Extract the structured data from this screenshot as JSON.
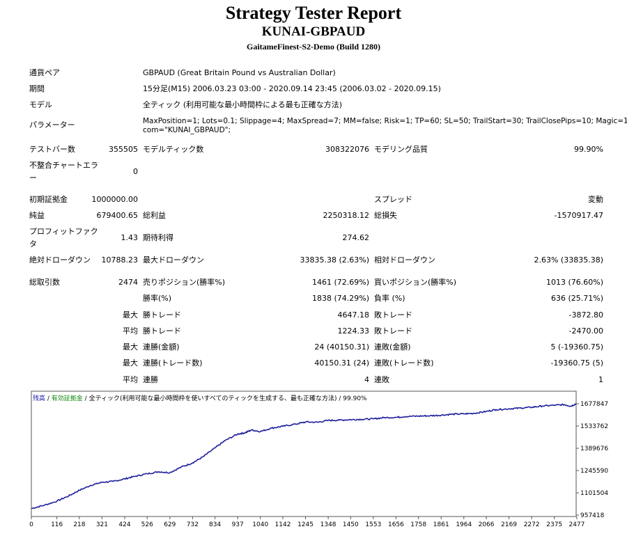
{
  "header": {
    "title": "Strategy Tester Report",
    "subtitle": "KUNAI-GBPAUD",
    "server": "GaitameFinest-S2-Demo (Build 1280)"
  },
  "info": {
    "pair_label": "通貨ペア",
    "pair_value": "GBPAUD (Great Britain Pound vs Australian Dollar)",
    "period_label": "期間",
    "period_value": "15分足(M15) 2006.03.23 03:00 - 2020.09.14 23:45 (2006.03.02 - 2020.09.15)",
    "model_label": "モデル",
    "model_value": "全ティック (利用可能な最小時間枠による最も正確な方法)",
    "params_label": "パラメーター",
    "params_line1": "MaxPosition=1; Lots=0.1; Slippage=4; MaxSpread=7; MM=false; Risk=1; TP=60; SL=50; TrailStart=30; TrailClosePips=10; Magic=1006;",
    "params_line2": "com=\"KUNAI_GBPAUD\";"
  },
  "stats": {
    "bars_label": "テストバー数",
    "bars_value": "355505",
    "ticks_label": "モデルティック数",
    "ticks_value": "308322076",
    "quality_label": "モデリング品質",
    "quality_value": "99.90%",
    "mismatch_label": "不整合チャートエラー",
    "mismatch_value": "0",
    "deposit_label": "初期証拠金",
    "deposit_value": "1000000.00",
    "spread_label": "スプレッド",
    "spread_value": "変動",
    "net_label": "純益",
    "net_value": "679400.65",
    "gross_profit_label": "総利益",
    "gross_profit_value": "2250318.12",
    "gross_loss_label": "総損失",
    "gross_loss_value": "-1570917.47",
    "pf_label": "プロフィットファクタ",
    "pf_value": "1.43",
    "expected_label": "期待利得",
    "expected_value": "274.62",
    "abs_dd_label": "絶対ドローダウン",
    "abs_dd_value": "10788.23",
    "max_dd_label": "最大ドローダウン",
    "max_dd_value": "33835.38 (2.63%)",
    "rel_dd_label": "相対ドローダウン",
    "rel_dd_value": "2.63% (33835.38)",
    "trades_label": "総取引数",
    "trades_value": "2474",
    "short_label": "売りポジション(勝率%)",
    "short_value": "1461 (72.69%)",
    "long_label": "買いポジション(勝率%)",
    "long_value": "1013 (76.60%)",
    "winrate_label": "勝率(%)",
    "winrate_value": "1838 (74.29%)",
    "lossrate_label": "負率 (%)",
    "lossrate_value": "636 (25.71%)",
    "max_word": "最大",
    "avg_word": "平均",
    "win_trade_label": "勝トレード",
    "lose_trade_label": "敗トレード",
    "largest_win_value": "4647.18",
    "largest_loss_value": "-3872.80",
    "avg_win_value": "1224.33",
    "avg_loss_value": "-2470.00",
    "consec_win_amount_label": "連勝(金額)",
    "consec_win_amount_value": "24 (40150.31)",
    "consec_loss_amount_label": "連敗(金額)",
    "consec_loss_amount_value": "5 (-19360.75)",
    "consec_win_trades_label": "連勝(トレード数)",
    "consec_win_trades_value": "40150.31 (24)",
    "consec_loss_trades_label": "連敗(トレード数)",
    "consec_loss_trades_value": "-19360.75 (5)",
    "avg_consec_win_label": "連勝",
    "avg_consec_win_value": "4",
    "avg_consec_loss_label": "連敗",
    "avg_consec_loss_value": "1"
  },
  "chart_data": {
    "type": "line",
    "legend": {
      "balance": "残高",
      "sep1": " / ",
      "equity": "有効証拠金",
      "sep2": " / ",
      "model": "全ティック(利用可能な最小時間枠を使いすべてのティックを生成する、最も正確な方法)",
      "quality": " / 99.90%"
    },
    "x_ticks": [
      "0",
      "116",
      "218",
      "321",
      "424",
      "526",
      "629",
      "732",
      "834",
      "937",
      "1040",
      "1142",
      "1245",
      "1348",
      "1450",
      "1553",
      "1656",
      "1758",
      "1861",
      "1964",
      "2066",
      "2169",
      "2272",
      "2375",
      "2477"
    ],
    "y_ticks": [
      "957418",
      "1101504",
      "1245590",
      "1389676",
      "1533762",
      "1677847"
    ],
    "xlim": [
      0,
      2474
    ],
    "ylim": [
      957418,
      1677847
    ],
    "series_color": "#1e1e9c",
    "points": [
      [
        0,
        1000000
      ],
      [
        60,
        1022000
      ],
      [
        116,
        1048000
      ],
      [
        170,
        1082000
      ],
      [
        218,
        1118000
      ],
      [
        270,
        1150000
      ],
      [
        321,
        1170000
      ],
      [
        370,
        1175000
      ],
      [
        424,
        1192000
      ],
      [
        470,
        1208000
      ],
      [
        526,
        1225000
      ],
      [
        580,
        1238000
      ],
      [
        629,
        1232000
      ],
      [
        680,
        1268000
      ],
      [
        732,
        1295000
      ],
      [
        780,
        1335000
      ],
      [
        834,
        1392000
      ],
      [
        880,
        1440000
      ],
      [
        937,
        1482000
      ],
      [
        970,
        1490000
      ],
      [
        1000,
        1508000
      ],
      [
        1040,
        1498000
      ],
      [
        1090,
        1520000
      ],
      [
        1142,
        1532000
      ],
      [
        1200,
        1546000
      ],
      [
        1245,
        1560000
      ],
      [
        1300,
        1558000
      ],
      [
        1348,
        1570000
      ],
      [
        1400,
        1572000
      ],
      [
        1450,
        1575000
      ],
      [
        1500,
        1577000
      ],
      [
        1553,
        1580000
      ],
      [
        1600,
        1588000
      ],
      [
        1656,
        1590000
      ],
      [
        1700,
        1595000
      ],
      [
        1758,
        1598000
      ],
      [
        1810,
        1600000
      ],
      [
        1861,
        1604000
      ],
      [
        1910,
        1610000
      ],
      [
        1964,
        1612000
      ],
      [
        2010,
        1616000
      ],
      [
        2066,
        1628000
      ],
      [
        2110,
        1640000
      ],
      [
        2169,
        1645000
      ],
      [
        2220,
        1650000
      ],
      [
        2272,
        1655000
      ],
      [
        2320,
        1663000
      ],
      [
        2375,
        1668000
      ],
      [
        2420,
        1672000
      ],
      [
        2450,
        1662000
      ],
      [
        2474,
        1678000
      ]
    ]
  }
}
